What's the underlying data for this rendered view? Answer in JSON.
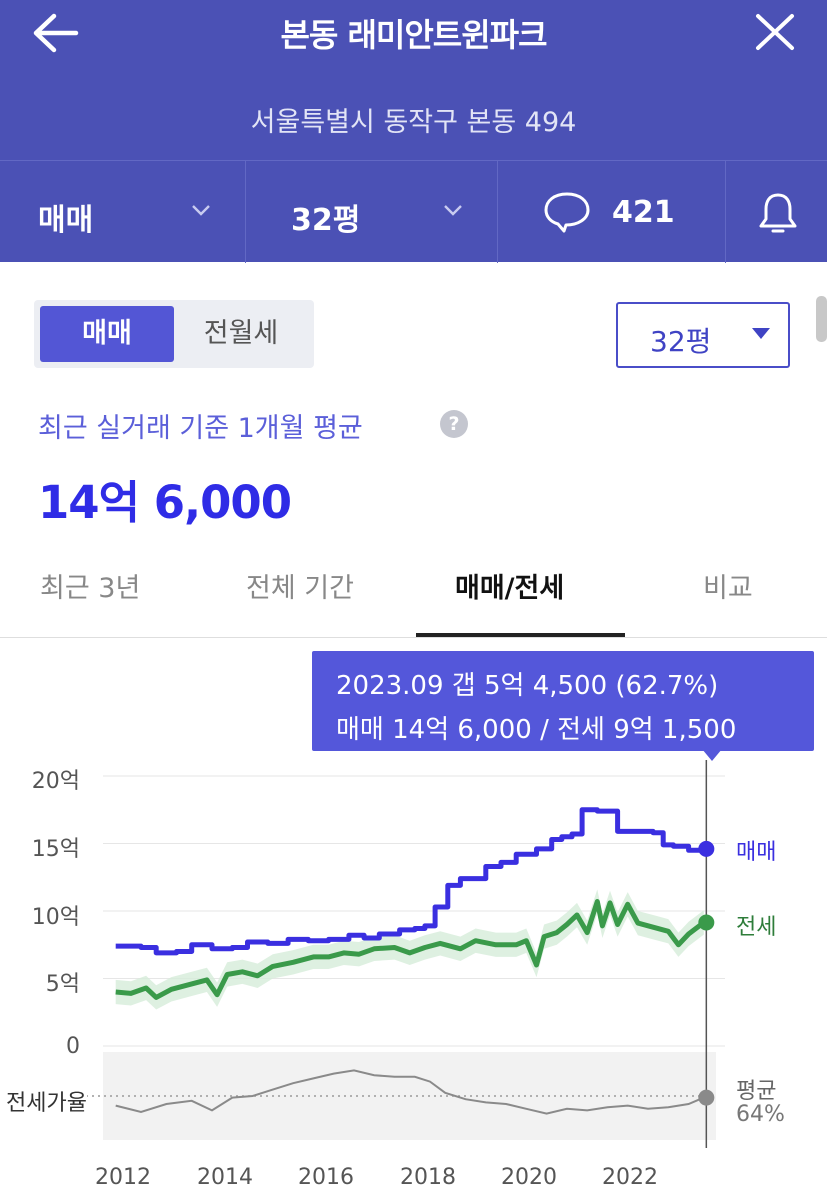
{
  "header": {
    "title": "본동 래미안트윈파크",
    "address": "서울특별시 동작구 본동 494",
    "deal_type": "매매",
    "size": "32평",
    "comment_count": "421"
  },
  "toggle": {
    "active": "매매",
    "inactive": "전월세"
  },
  "size_select": {
    "value": "32평"
  },
  "summary": {
    "label": "최근 실거래 기준 1개월 평균",
    "help_icon": "?",
    "price": "14억 6,000"
  },
  "tabs": [
    {
      "label": "최근 3년",
      "active": false
    },
    {
      "label": "전체 기간",
      "active": false
    },
    {
      "label": "매매/전세",
      "active": true
    },
    {
      "label": "비교",
      "active": false
    }
  ],
  "tooltip": {
    "line1": "2023.09  갭 5억 4,500 (62.7%)",
    "line2": "매매 14억 6,000 / 전세 9억 1,500"
  },
  "icons": {
    "back": "arrow-left-icon",
    "close": "close-icon",
    "comment": "speech-bubble-icon",
    "alert": "bell-icon"
  },
  "colors": {
    "header_bg": "#4b51b5",
    "accent": "#5356d5",
    "sale": "#3a2fe0",
    "jeonse": "#3a9a4a",
    "ratio": "#8a8a8a"
  },
  "chart_data": {
    "type": "line",
    "y_axis": {
      "ticks": [
        "0",
        "5억",
        "10억",
        "15억",
        "20억"
      ],
      "ylim": [
        0,
        20
      ]
    },
    "x_axis": {
      "ticks": [
        "2012",
        "2014",
        "2016",
        "2018",
        "2020",
        "2022"
      ],
      "xlim": [
        2011.75,
        2023.9
      ]
    },
    "series": [
      {
        "name": "매매",
        "color": "#3a2fe0",
        "values": [
          [
            2012.0,
            7.4
          ],
          [
            2012.5,
            7.3
          ],
          [
            2012.8,
            6.9
          ],
          [
            2013.2,
            7.0
          ],
          [
            2013.5,
            7.5
          ],
          [
            2013.9,
            7.2
          ],
          [
            2014.3,
            7.3
          ],
          [
            2014.6,
            7.7
          ],
          [
            2015.0,
            7.6
          ],
          [
            2015.4,
            7.9
          ],
          [
            2015.8,
            7.8
          ],
          [
            2016.2,
            7.9
          ],
          [
            2016.6,
            8.2
          ],
          [
            2016.9,
            8.0
          ],
          [
            2017.2,
            8.3
          ],
          [
            2017.6,
            8.6
          ],
          [
            2017.9,
            8.7
          ],
          [
            2018.1,
            8.9
          ],
          [
            2018.3,
            10.3
          ],
          [
            2018.55,
            11.9
          ],
          [
            2018.8,
            12.4
          ],
          [
            2019.1,
            12.4
          ],
          [
            2019.3,
            13.3
          ],
          [
            2019.6,
            13.6
          ],
          [
            2019.9,
            14.2
          ],
          [
            2020.3,
            14.6
          ],
          [
            2020.6,
            15.3
          ],
          [
            2020.8,
            15.5
          ],
          [
            2021.0,
            15.7
          ],
          [
            2021.2,
            17.5
          ],
          [
            2021.5,
            17.4
          ],
          [
            2021.75,
            17.4
          ],
          [
            2021.9,
            15.9
          ],
          [
            2022.2,
            15.9
          ],
          [
            2022.6,
            15.8
          ],
          [
            2022.8,
            14.9
          ],
          [
            2023.0,
            14.8
          ],
          [
            2023.3,
            14.5
          ],
          [
            2023.7,
            14.6
          ]
        ]
      },
      {
        "name": "전세",
        "color": "#3a9a4a",
        "values": [
          [
            2012.0,
            4.0
          ],
          [
            2012.3,
            3.9
          ],
          [
            2012.6,
            4.3
          ],
          [
            2012.8,
            3.6
          ],
          [
            2013.1,
            4.2
          ],
          [
            2013.5,
            4.6
          ],
          [
            2013.8,
            4.9
          ],
          [
            2014.0,
            3.8
          ],
          [
            2014.2,
            5.3
          ],
          [
            2014.5,
            5.5
          ],
          [
            2014.8,
            5.2
          ],
          [
            2015.1,
            5.9
          ],
          [
            2015.5,
            6.2
          ],
          [
            2015.9,
            6.6
          ],
          [
            2016.2,
            6.6
          ],
          [
            2016.5,
            6.9
          ],
          [
            2016.8,
            6.8
          ],
          [
            2017.1,
            7.2
          ],
          [
            2017.5,
            7.3
          ],
          [
            2017.8,
            6.9
          ],
          [
            2018.1,
            7.3
          ],
          [
            2018.4,
            7.6
          ],
          [
            2018.8,
            7.2
          ],
          [
            2019.1,
            7.8
          ],
          [
            2019.5,
            7.5
          ],
          [
            2019.9,
            7.5
          ],
          [
            2020.1,
            7.8
          ],
          [
            2020.3,
            6.0
          ],
          [
            2020.45,
            8.1
          ],
          [
            2020.7,
            8.4
          ],
          [
            2020.9,
            9.0
          ],
          [
            2021.1,
            9.7
          ],
          [
            2021.3,
            8.4
          ],
          [
            2021.5,
            10.7
          ],
          [
            2021.6,
            8.9
          ],
          [
            2021.75,
            10.6
          ],
          [
            2021.9,
            9.0
          ],
          [
            2022.1,
            10.5
          ],
          [
            2022.3,
            9.1
          ],
          [
            2022.6,
            8.8
          ],
          [
            2022.9,
            8.5
          ],
          [
            2023.1,
            7.5
          ],
          [
            2023.3,
            8.3
          ],
          [
            2023.6,
            9.15
          ]
        ]
      },
      {
        "name": "평균",
        "color": "#8a8a8a",
        "values": [
          [
            2012.0,
            58
          ],
          [
            2012.5,
            54
          ],
          [
            2013.0,
            59
          ],
          [
            2013.5,
            61
          ],
          [
            2013.9,
            55
          ],
          [
            2014.3,
            63
          ],
          [
            2014.7,
            64
          ],
          [
            2015.1,
            68
          ],
          [
            2015.5,
            72
          ],
          [
            2015.9,
            75
          ],
          [
            2016.3,
            78
          ],
          [
            2016.7,
            80
          ],
          [
            2017.1,
            77
          ],
          [
            2017.5,
            76
          ],
          [
            2017.9,
            76
          ],
          [
            2018.2,
            73
          ],
          [
            2018.5,
            66
          ],
          [
            2018.9,
            62
          ],
          [
            2019.3,
            60
          ],
          [
            2019.7,
            59
          ],
          [
            2020.1,
            56
          ],
          [
            2020.5,
            53
          ],
          [
            2020.9,
            56
          ],
          [
            2021.3,
            55
          ],
          [
            2021.7,
            57
          ],
          [
            2022.1,
            58
          ],
          [
            2022.5,
            56
          ],
          [
            2022.9,
            57
          ],
          [
            2023.3,
            59
          ],
          [
            2023.6,
            63
          ]
        ]
      }
    ],
    "ratio_label": "전세가율",
    "ratio_avg_label": "평균",
    "ratio_avg_value": "64%",
    "grid": true,
    "cursor_x": 2023.65,
    "end_labels": [
      "매매",
      "전세"
    ]
  }
}
